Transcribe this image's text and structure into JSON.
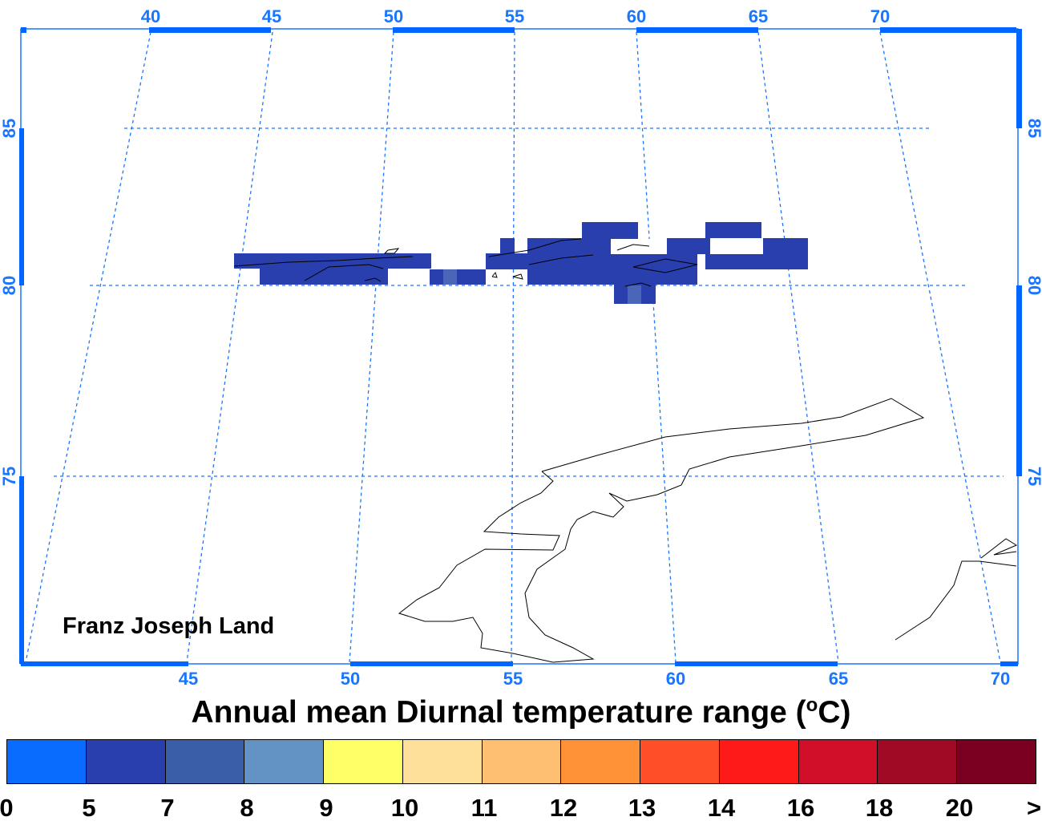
{
  "map": {
    "region_label": "Franz Joseph Land",
    "top_lon_labels": [
      "40",
      "45",
      "50",
      "55",
      "60",
      "65",
      "70"
    ],
    "bottom_lon_labels": [
      "45",
      "50",
      "55",
      "60",
      "65",
      "70"
    ],
    "left_lat_labels": [
      "85",
      "80",
      "75"
    ],
    "right_lat_labels": [
      "85",
      "80",
      "75"
    ],
    "grid_color": "#1a75ff",
    "frame_color": "#0066ff"
  },
  "title": {
    "text_before": "Annual mean Diurnal temperature range (",
    "superscript": "o",
    "text_after": "C)"
  },
  "legend": {
    "labels": [
      "0",
      "5",
      "7",
      "8",
      "9",
      "10",
      "11",
      "12",
      "13",
      "14",
      "16",
      "18",
      "20",
      ">"
    ],
    "colors": [
      "#0a6cff",
      "#2a3fae",
      "#3a5ea8",
      "#6393c4",
      "#ffff66",
      "#ffe09a",
      "#ffbf73",
      "#ff9136",
      "#ff4e28",
      "#ff1a1a",
      "#d01028",
      "#a00a24",
      "#7a0020"
    ]
  },
  "data_cell_color": "#2a3fae"
}
